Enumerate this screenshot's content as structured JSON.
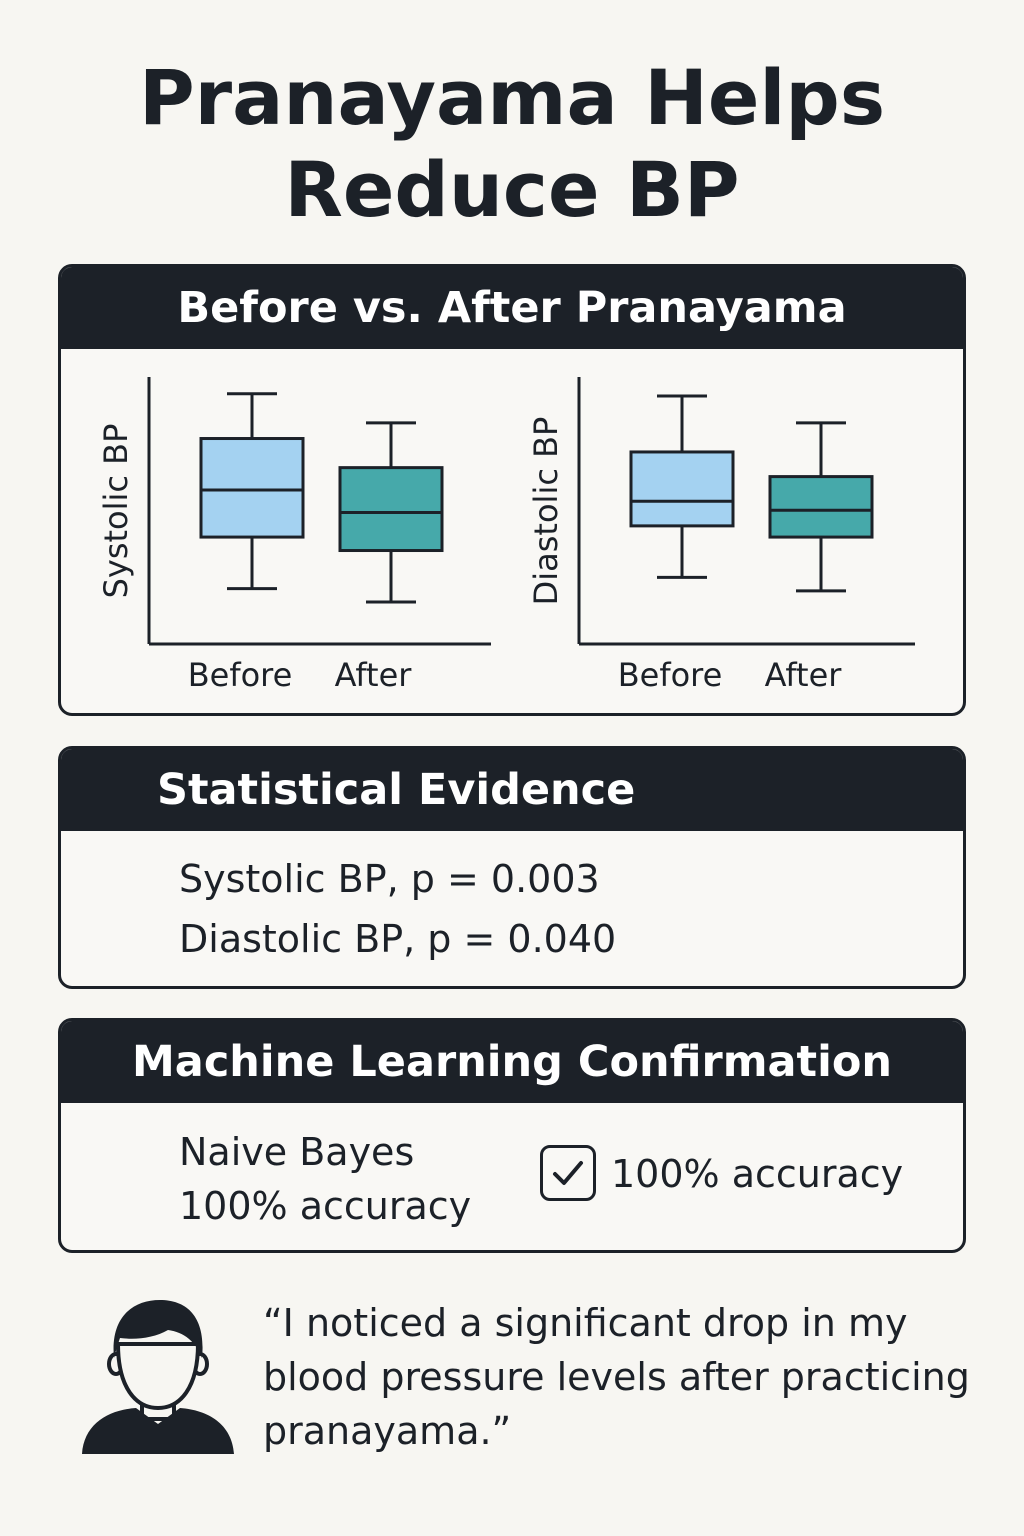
{
  "title": {
    "line1": "Pranayama Helps",
    "line2": "Reduce BP"
  },
  "charts_panel": {
    "heading": "Before vs. After Pranayama"
  },
  "colors": {
    "before": "#a4d2f1",
    "after": "#46a9aa",
    "dark": "#1c2128"
  },
  "chart_data": [
    {
      "type": "box",
      "title": "",
      "xlabel": "",
      "ylabel": "Systolic BP",
      "categories": [
        "Before",
        "After"
      ],
      "boxes": [
        {
          "label": "Before",
          "whisker_low": 0.1,
          "q1": 0.33,
          "median": 0.54,
          "q3": 0.77,
          "whisker_high": 0.97
        },
        {
          "label": "After",
          "whisker_low": 0.04,
          "q1": 0.27,
          "median": 0.44,
          "q3": 0.64,
          "whisker_high": 0.84
        }
      ]
    },
    {
      "type": "box",
      "title": "",
      "xlabel": "",
      "ylabel": "Diastolic BP",
      "categories": [
        "Before",
        "After"
      ],
      "boxes": [
        {
          "label": "Before",
          "whisker_low": 0.15,
          "q1": 0.38,
          "median": 0.49,
          "q3": 0.71,
          "whisker_high": 0.96
        },
        {
          "label": "After",
          "whisker_low": 0.09,
          "q1": 0.33,
          "median": 0.45,
          "q3": 0.6,
          "whisker_high": 0.84
        }
      ]
    }
  ],
  "stats_panel": {
    "heading": "Statistical Evidence",
    "lines": [
      "Systolic BP, p = 0.003",
      "Diastolic BP, p = 0.040"
    ]
  },
  "ml_panel": {
    "heading": "Machine Learning Confirmation",
    "model_name": "Naive Bayes",
    "model_accuracy": "100% accuracy",
    "check_icon": "checkmark-box-icon",
    "confirmed_accuracy": "100% accuracy"
  },
  "testimonial": {
    "avatar_icon": "person-avatar-icon",
    "quote": "“I noticed a significant drop in my blood pressure levels after practicing pranayama.”"
  }
}
